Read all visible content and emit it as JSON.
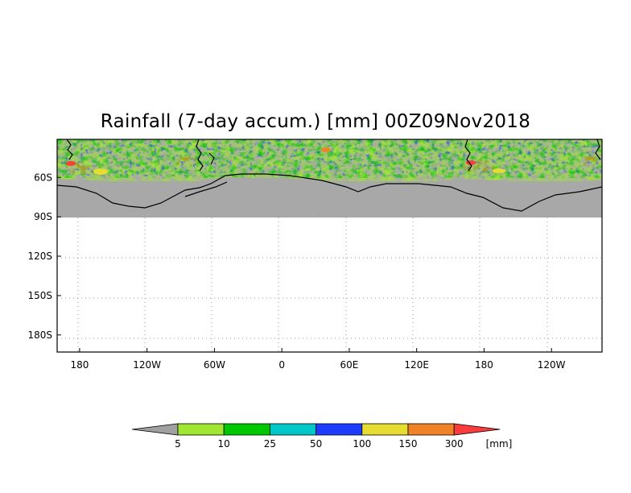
{
  "title": "Rainfall (7-day accum.) [mm] 00Z09Nov2018",
  "axes": {
    "y_ticks": [
      {
        "value": -60,
        "label": "60S"
      },
      {
        "value": -90,
        "label": "90S"
      },
      {
        "value": -120,
        "label": "120S"
      },
      {
        "value": -150,
        "label": "150S"
      },
      {
        "value": -180,
        "label": "180S"
      }
    ],
    "x_ticks": [
      {
        "value": 180,
        "label": "180"
      },
      {
        "value": 240,
        "label": "120W"
      },
      {
        "value": 300,
        "label": "60W"
      },
      {
        "value": 360,
        "label": "0"
      },
      {
        "value": 420,
        "label": "60E"
      },
      {
        "value": 480,
        "label": "120E"
      },
      {
        "value": 540,
        "label": "180"
      },
      {
        "value": 600,
        "label": "120W"
      }
    ],
    "x_range": [
      160,
      645
    ],
    "y_range": [
      -193,
      -31
    ],
    "grid": "dotted",
    "data_band_lat": [
      -31,
      -90
    ]
  },
  "colorbar": {
    "unit_label": "[mm]",
    "colors": [
      "#a0a0a0",
      "#a0e632",
      "#00c800",
      "#00c8c8",
      "#1e3cff",
      "#e6dc32",
      "#f08228",
      "#fa3c3c"
    ],
    "labels": [
      "5",
      "10",
      "25",
      "50",
      "100",
      "150",
      "300"
    ]
  }
}
